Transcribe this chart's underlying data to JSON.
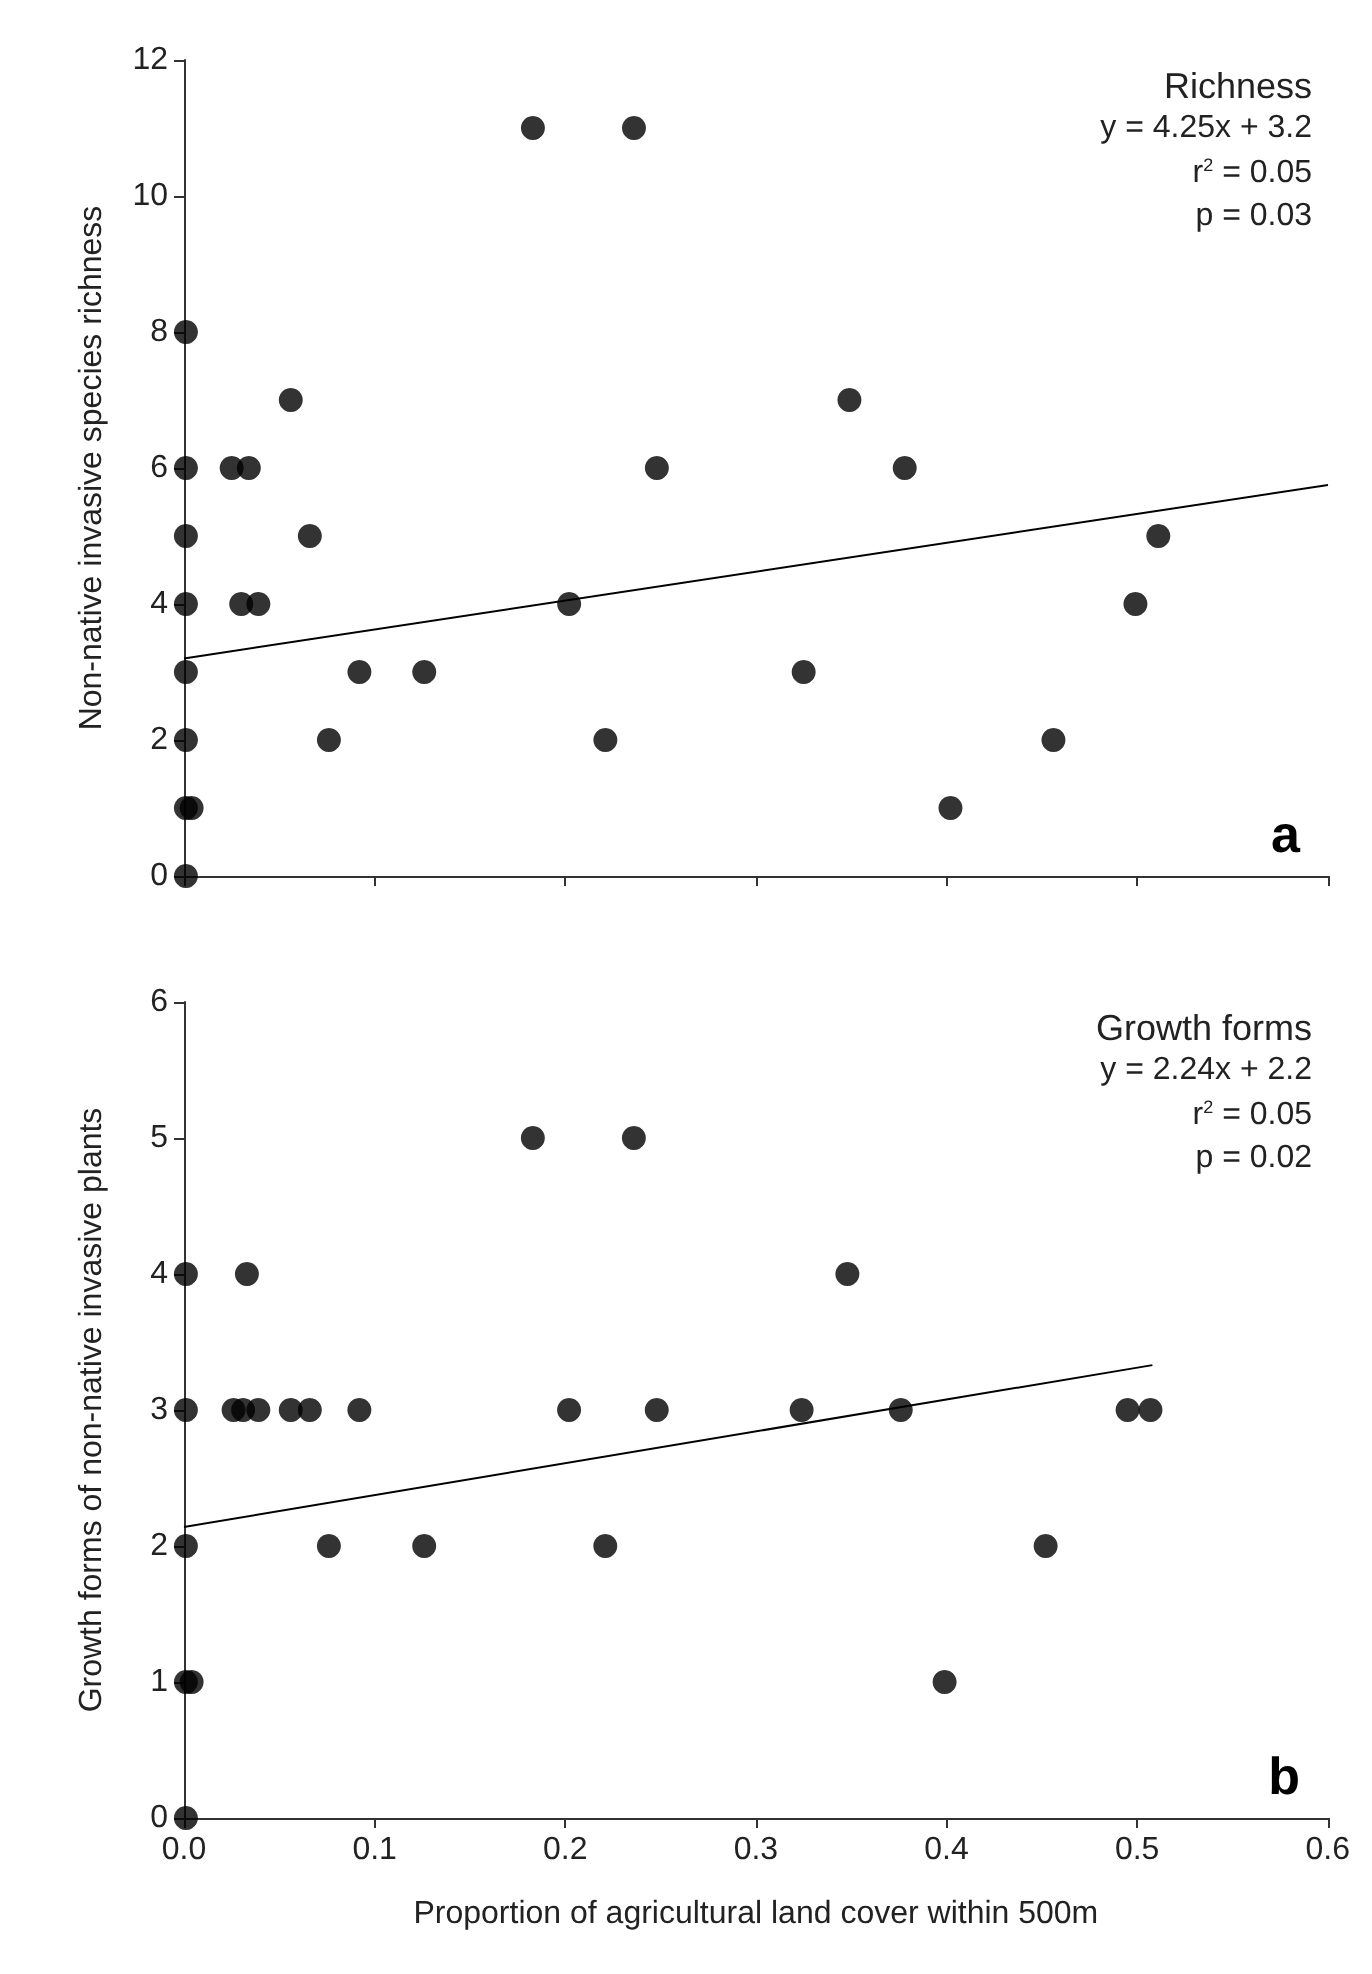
{
  "chart_data": [
    {
      "type": "scatter",
      "ylabel": "Non-native invasive species richness",
      "marker": "circle",
      "grid": false,
      "tick_labels": "y",
      "xlim": [
        0,
        0.6
      ],
      "xticks": [
        0,
        0.1,
        0.2,
        0.3,
        0.4,
        0.5,
        0.6
      ],
      "ylim": [
        0,
        12
      ],
      "yticks": [
        0,
        2,
        4,
        6,
        8,
        10,
        12
      ],
      "annotations": [
        "Richness",
        "y = 4.25x + 3.2",
        "r$^{2}$ = 0.05",
        "p = 0.03",
        "a"
      ],
      "series": [
        {
          "type": "scatter",
          "color": "#000000",
          "x": [
            0.001,
            0.001,
            0.001,
            0.001,
            0.001,
            0.001,
            0.001,
            0.001,
            0.004,
            0.025,
            0.034,
            0.03,
            0.039,
            0.056,
            0.066,
            0.076,
            0.092,
            0.126,
            0.183,
            0.202,
            0.221,
            0.236,
            0.248,
            0.325,
            0.349,
            0.378,
            0.402,
            0.456,
            0.499,
            0.511
          ],
          "values": [
            8,
            6,
            5,
            4,
            3,
            2,
            1,
            0,
            1,
            6,
            6,
            4,
            4,
            7,
            5,
            2,
            3,
            3,
            11,
            4,
            2,
            11,
            6,
            3,
            7,
            6,
            1,
            2,
            4,
            5
          ]
        },
        {
          "type": "line",
          "marker": "none",
          "color": "#000000",
          "x": [
            0,
            0.6
          ],
          "values": [
            3.2,
            5.75
          ]
        }
      ]
    },
    {
      "type": "scatter",
      "xlabel": "Proportion of agricultural land cover within 500m",
      "ylabel": "Growth forms of non-native invasive plants",
      "marker": "circle",
      "grid": false,
      "xlim": [
        0,
        0.6
      ],
      "xticks": [
        {
          "value": 0,
          "label": "0.0"
        },
        {
          "value": 0.1,
          "label": "0.1"
        },
        {
          "value": 0.2,
          "label": "0.2"
        },
        {
          "value": 0.3,
          "label": "0.3"
        },
        {
          "value": 0.4,
          "label": "0.4"
        },
        {
          "value": 0.5,
          "label": "0.5"
        },
        {
          "value": 0.6,
          "label": "0.6"
        }
      ],
      "ylim": [
        0,
        6
      ],
      "yticks": [
        0,
        1,
        2,
        3,
        4,
        5,
        6
      ],
      "annotations": [
        "Growth forms",
        "y = 2.24x + 2.2",
        "r$^{2}$ = 0.05",
        "p = 0.02",
        "b"
      ],
      "series": [
        {
          "type": "scatter",
          "color": "#000000",
          "x": [
            0.001,
            0.001,
            0.001,
            0.001,
            0.001,
            0.004,
            0.033,
            0.026,
            0.031,
            0.039,
            0.056,
            0.066,
            0.092,
            0.076,
            0.126,
            0.221,
            0.183,
            0.236,
            0.202,
            0.248,
            0.324,
            0.376,
            0.495,
            0.507,
            0.348,
            0.452,
            0.399
          ],
          "values": [
            4,
            3,
            2,
            1,
            0,
            1,
            4,
            3,
            3,
            3,
            3,
            3,
            3,
            2,
            2,
            2,
            5,
            5,
            3,
            3,
            3,
            3,
            3,
            3,
            4,
            2,
            1
          ]
        },
        {
          "type": "line",
          "marker": "none",
          "color": "#000000",
          "x": [
            0,
            0.508
          ],
          "values": [
            2.14,
            3.33
          ]
        }
      ]
    }
  ]
}
